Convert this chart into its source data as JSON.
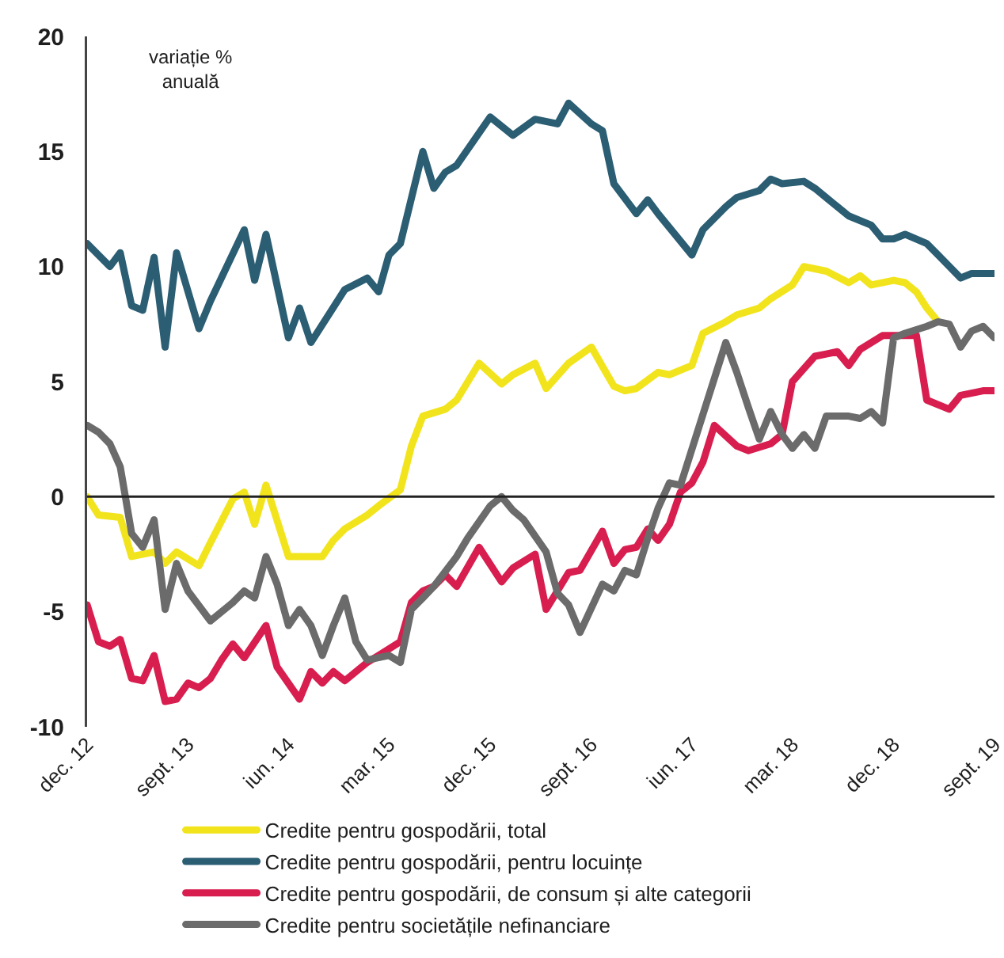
{
  "chart_data": {
    "type": "line",
    "ylabel": "variație %\nanuală",
    "ylim": [
      -10,
      20
    ],
    "yticks": [
      -10,
      -5,
      0,
      5,
      10,
      15,
      20
    ],
    "xlim": [
      "2012-12",
      "2019-09"
    ],
    "xticks": [
      {
        "value": "2012-12",
        "label": "dec. 12"
      },
      {
        "value": "2013-09",
        "label": "sept. 13"
      },
      {
        "value": "2014-06",
        "label": "iun. 14"
      },
      {
        "value": "2015-03",
        "label": "mar. 15"
      },
      {
        "value": "2015-12",
        "label": "dec. 15"
      },
      {
        "value": "2016-09",
        "label": "sept. 16"
      },
      {
        "value": "2017-06",
        "label": "iun. 17"
      },
      {
        "value": "2018-03",
        "label": "mar. 18"
      },
      {
        "value": "2018-12",
        "label": "dec. 18"
      },
      {
        "value": "2019-09",
        "label": "sept. 19"
      }
    ],
    "legend": "bottom",
    "ref_lines": [
      {
        "axis": "y",
        "value": 0,
        "color": "#222222"
      }
    ],
    "series": [
      {
        "name": "Credite pentru gospodării, total",
        "color": "#f2e41c",
        "x": [
          "2012-12",
          "2013-01",
          "2013-03",
          "2013-04",
          "2013-06",
          "2013-07",
          "2013-08",
          "2013-10",
          "2013-11",
          "2014-01",
          "2014-02",
          "2014-03",
          "2014-04",
          "2014-06",
          "2014-09",
          "2014-10",
          "2014-11",
          "2015-01",
          "2015-02",
          "2015-04",
          "2015-05",
          "2015-06",
          "2015-08",
          "2015-09",
          "2015-11",
          "2016-01",
          "2016-02",
          "2016-04",
          "2016-05",
          "2016-07",
          "2016-09",
          "2016-11",
          "2016-12",
          "2017-01",
          "2017-03",
          "2017-04",
          "2017-06",
          "2017-07",
          "2017-09",
          "2017-10",
          "2017-12",
          "2018-01",
          "2018-03",
          "2018-04",
          "2018-06",
          "2018-08",
          "2018-09",
          "2018-10",
          "2018-12",
          "2019-01",
          "2019-02",
          "2019-03",
          "2019-04"
        ],
        "values": [
          0.0,
          -0.8,
          -0.9,
          -2.6,
          -2.4,
          -2.9,
          -2.4,
          -3.0,
          -2.0,
          -0.1,
          0.2,
          -1.2,
          0.5,
          -2.6,
          -2.6,
          -1.9,
          -1.4,
          -0.8,
          -0.4,
          0.3,
          2.2,
          3.5,
          3.8,
          4.2,
          5.8,
          4.9,
          5.3,
          5.8,
          4.7,
          5.8,
          6.5,
          4.8,
          4.6,
          4.7,
          5.4,
          5.3,
          5.7,
          7.1,
          7.6,
          7.9,
          8.2,
          8.6,
          9.2,
          10.0,
          9.8,
          9.3,
          9.6,
          9.2,
          9.4,
          9.3,
          8.9,
          8.2,
          7.6
        ]
      },
      {
        "name": "Credite pentru gospodării, pentru locuințe",
        "color": "#2b5d73",
        "x": [
          "2012-12",
          "2013-02",
          "2013-03",
          "2013-04",
          "2013-05",
          "2013-06",
          "2013-07",
          "2013-08",
          "2013-10",
          "2013-11",
          "2014-02",
          "2014-03",
          "2014-04",
          "2014-06",
          "2014-07",
          "2014-08",
          "2014-11",
          "2015-01",
          "2015-02",
          "2015-03",
          "2015-04",
          "2015-06",
          "2015-07",
          "2015-08",
          "2015-09",
          "2015-12",
          "2016-02",
          "2016-04",
          "2016-06",
          "2016-07",
          "2016-09",
          "2016-10",
          "2016-11",
          "2017-01",
          "2017-02",
          "2017-03",
          "2017-06",
          "2017-07",
          "2017-09",
          "2017-10",
          "2017-12",
          "2018-01",
          "2018-02",
          "2018-04",
          "2018-05",
          "2018-07",
          "2018-08",
          "2018-10",
          "2018-11",
          "2018-12",
          "2019-01",
          "2019-03",
          "2019-04",
          "2019-06",
          "2019-07",
          "2019-09"
        ],
        "values": [
          11.0,
          10.0,
          10.6,
          8.3,
          8.1,
          10.4,
          6.5,
          10.6,
          7.3,
          8.5,
          11.6,
          9.4,
          11.4,
          6.9,
          8.2,
          6.7,
          9.0,
          9.5,
          8.9,
          10.5,
          11.0,
          15.0,
          13.4,
          14.1,
          14.4,
          16.5,
          15.7,
          16.4,
          16.2,
          17.1,
          16.2,
          15.9,
          13.6,
          12.3,
          12.9,
          12.3,
          10.5,
          11.6,
          12.6,
          13.0,
          13.3,
          13.8,
          13.6,
          13.7,
          13.4,
          12.6,
          12.2,
          11.8,
          11.2,
          11.2,
          11.4,
          11.0,
          10.5,
          9.5,
          9.7,
          9.7
        ]
      },
      {
        "name": "Credite pentru gospodării, de consum și alte categorii",
        "color": "#d81e4f",
        "x": [
          "2012-12",
          "2013-01",
          "2013-02",
          "2013-03",
          "2013-04",
          "2013-05",
          "2013-06",
          "2013-07",
          "2013-08",
          "2013-09",
          "2013-10",
          "2013-11",
          "2013-12",
          "2014-01",
          "2014-02",
          "2014-04",
          "2014-05",
          "2014-07",
          "2014-08",
          "2014-09",
          "2014-10",
          "2014-11",
          "2015-01",
          "2015-02",
          "2015-04",
          "2015-05",
          "2015-06",
          "2015-07",
          "2015-08",
          "2015-09",
          "2015-11",
          "2016-01",
          "2016-02",
          "2016-04",
          "2016-05",
          "2016-07",
          "2016-08",
          "2016-10",
          "2016-11",
          "2016-12",
          "2017-01",
          "2017-02",
          "2017-03",
          "2017-04",
          "2017-05",
          "2017-06",
          "2017-07",
          "2017-08",
          "2017-10",
          "2017-11",
          "2018-01",
          "2018-02",
          "2018-03",
          "2018-05",
          "2018-06",
          "2018-07",
          "2018-08",
          "2018-09",
          "2018-11",
          "2019-02",
          "2019-03",
          "2019-05",
          "2019-06",
          "2019-08",
          "2019-09"
        ],
        "values": [
          -4.7,
          -6.3,
          -6.5,
          -6.2,
          -7.9,
          -8.0,
          -6.9,
          -8.9,
          -8.8,
          -8.1,
          -8.3,
          -7.9,
          -7.1,
          -6.4,
          -7.0,
          -5.6,
          -7.4,
          -8.8,
          -7.6,
          -8.1,
          -7.6,
          -8.0,
          -7.2,
          -6.9,
          -6.3,
          -4.6,
          -4.1,
          -3.9,
          -3.4,
          -3.9,
          -2.2,
          -3.7,
          -3.1,
          -2.5,
          -4.9,
          -3.3,
          -3.2,
          -1.5,
          -2.9,
          -2.3,
          -2.2,
          -1.4,
          -1.9,
          -1.2,
          0.2,
          0.6,
          1.5,
          3.1,
          2.2,
          2.0,
          2.3,
          2.7,
          5.0,
          6.1,
          6.2,
          6.3,
          5.7,
          6.4,
          7.0,
          7.0,
          4.2,
          3.8,
          4.4,
          4.6,
          4.6
        ]
      },
      {
        "name": "Credite pentru societățile nefinanciare",
        "color": "#6b6b6b",
        "x": [
          "2012-12",
          "2013-01",
          "2013-02",
          "2013-03",
          "2013-04",
          "2013-05",
          "2013-06",
          "2013-07",
          "2013-08",
          "2013-09",
          "2013-11",
          "2014-01",
          "2014-02",
          "2014-03",
          "2014-04",
          "2014-05",
          "2014-06",
          "2014-07",
          "2014-08",
          "2014-09",
          "2014-10",
          "2014-11",
          "2014-12",
          "2015-01",
          "2015-03",
          "2015-04",
          "2015-05",
          "2015-06",
          "2015-07",
          "2015-09",
          "2015-10",
          "2015-12",
          "2016-01",
          "2016-02",
          "2016-03",
          "2016-05",
          "2016-06",
          "2016-07",
          "2016-08",
          "2016-10",
          "2016-11",
          "2016-12",
          "2017-01",
          "2017-02",
          "2017-03",
          "2017-04",
          "2017-05",
          "2017-09",
          "2017-10",
          "2017-11",
          "2017-12",
          "2018-01",
          "2018-02",
          "2018-03",
          "2018-04",
          "2018-05",
          "2018-06",
          "2018-08",
          "2018-09",
          "2018-10",
          "2018-11",
          "2018-12",
          "2019-01",
          "2019-03",
          "2019-04",
          "2019-05",
          "2019-06",
          "2019-07",
          "2019-08",
          "2019-09"
        ],
        "values": [
          3.1,
          2.8,
          2.3,
          1.3,
          -1.6,
          -2.2,
          -1.0,
          -4.9,
          -2.9,
          -4.1,
          -5.4,
          -4.6,
          -4.1,
          -4.4,
          -2.6,
          -3.8,
          -5.6,
          -4.9,
          -5.6,
          -6.9,
          -5.6,
          -4.4,
          -6.3,
          -7.1,
          -6.9,
          -7.2,
          -4.9,
          -4.4,
          -3.9,
          -2.6,
          -1.8,
          -0.4,
          0.0,
          -0.6,
          -1.0,
          -2.4,
          -4.2,
          -4.7,
          -5.9,
          -3.8,
          -4.1,
          -3.2,
          -3.4,
          -1.8,
          -0.5,
          0.6,
          0.5,
          6.7,
          5.4,
          3.9,
          2.5,
          3.7,
          2.7,
          2.1,
          2.7,
          2.1,
          3.5,
          3.5,
          3.4,
          3.7,
          3.2,
          6.9,
          7.1,
          7.4,
          7.6,
          7.5,
          6.5,
          7.2,
          7.4,
          6.9
        ]
      }
    ]
  }
}
